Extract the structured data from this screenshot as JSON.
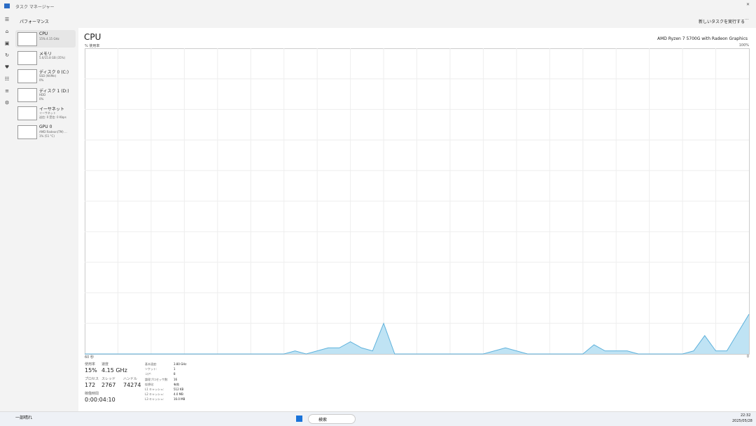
{
  "window": {
    "title": "タスク マネージャー"
  },
  "header": {
    "section": "パフォーマンス",
    "run_task": "新しいタスクを実行する"
  },
  "sidebar": [
    {
      "name": "CPU",
      "lines": [
        "15%  4.15 GHz"
      ]
    },
    {
      "name": "メモリ",
      "lines": [
        "5.6/15.8 GB (35%)"
      ]
    },
    {
      "name": "ディスク 0 (C:)",
      "lines": [
        "SSD (NVMe)",
        "0%"
      ]
    },
    {
      "name": "ディスク 1 (D:)",
      "lines": [
        "HDD",
        "0%"
      ]
    },
    {
      "name": "イーサネット",
      "lines": [
        "イーサネット",
        "送信: 0 受信: 0 Kbps"
      ]
    },
    {
      "name": "GPU 0",
      "lines": [
        "AMD Radeon(TM) ...",
        "1% (51 °C)"
      ]
    }
  ],
  "main": {
    "title": "CPU",
    "processor": "AMD Ryzen 7 5700G with Radeon Graphics",
    "graph": {
      "y_label": "% 使用率",
      "y_max_label": "100%",
      "x_label": "60 秒",
      "x_min_label": "0",
      "ylim": [
        0,
        100
      ],
      "values": [
        0,
        0,
        0,
        0,
        0,
        0,
        0,
        0,
        0,
        0,
        0,
        0,
        0,
        0,
        0,
        0,
        0,
        0,
        0,
        1,
        0,
        1,
        2,
        2,
        4,
        2,
        1,
        10,
        0,
        0,
        0,
        0,
        0,
        0,
        0,
        0,
        0,
        1,
        2,
        1,
        0,
        0,
        0,
        0,
        0,
        0,
        3,
        1,
        1,
        1,
        0,
        0,
        0,
        0,
        0,
        1,
        6,
        1,
        1,
        7,
        13
      ]
    },
    "stats": [
      {
        "label": "使用率",
        "value": "15%"
      },
      {
        "label": "速度",
        "value": "4.15 GHz"
      },
      {
        "label": "プロセス",
        "value": "172"
      },
      {
        "label": "スレッド",
        "value": "2767"
      },
      {
        "label": "ハンドル",
        "value": "74274"
      },
      {
        "label": "稼働時間",
        "value": "0:00:04:10"
      }
    ],
    "specs": [
      {
        "label": "基本速度:",
        "value": "3.80 GHz"
      },
      {
        "label": "ソケット:",
        "value": "1"
      },
      {
        "label": "コア:",
        "value": "8"
      },
      {
        "label": "論理プロセッサ数:",
        "value": "16"
      },
      {
        "label": "仮想化:",
        "value": "有効"
      },
      {
        "label": "L1 キャッシュ:",
        "value": "512 KB"
      },
      {
        "label": "L2 キャッシュ:",
        "value": "4.0 MB"
      },
      {
        "label": "L3 キャッシュ:",
        "value": "16.0 MB"
      }
    ]
  },
  "taskbar": {
    "weather": "一部晴れ",
    "search": "検索",
    "time": "22:32",
    "date": "2025/05/28"
  }
}
